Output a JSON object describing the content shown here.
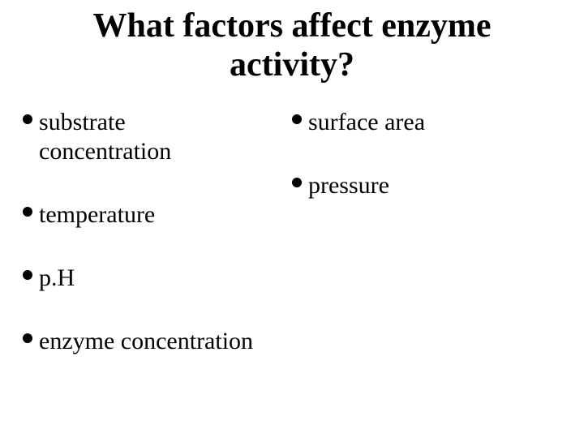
{
  "title": {
    "line1": "What factors affect enzyme",
    "line2": "activity?",
    "fontsize": 42
  },
  "columns": {
    "left": [
      {
        "text": "substrate concentration",
        "wrap_width": 240
      },
      {
        "text": "temperature",
        "wrap_width": 300
      },
      {
        "text": "p.H",
        "wrap_width": 300
      },
      {
        "text": "enzyme concentration",
        "wrap_width": 400
      }
    ],
    "right": [
      {
        "text": "surface area",
        "wrap_width": 300
      },
      {
        "text": "pressure",
        "wrap_width": 300
      }
    ]
  },
  "bullet": {
    "fontsize": 30,
    "dot_diameter": 12,
    "row_gap": 42
  },
  "colors": {
    "text": "#000000",
    "background": "#ffffff"
  }
}
